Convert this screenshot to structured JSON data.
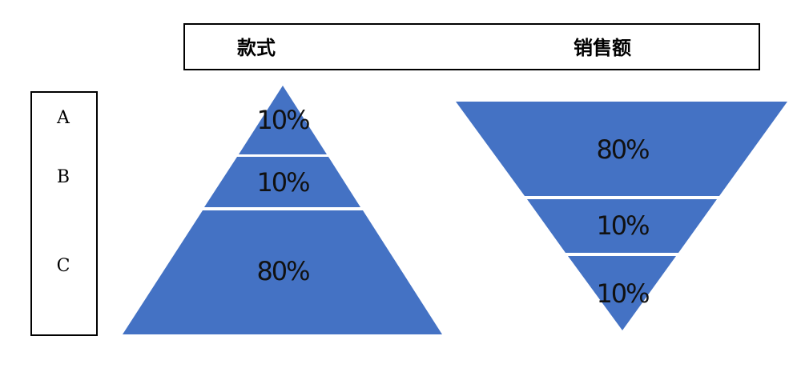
{
  "header": {
    "col1": "款式",
    "col2": "销售额"
  },
  "levels": {
    "a": "A",
    "b": "B",
    "c": "C"
  },
  "pyramid": {
    "segments": [
      "10%",
      "10%",
      "80%"
    ]
  },
  "inverted_pyramid": {
    "segments": [
      "80%",
      "10%",
      "10%"
    ]
  },
  "colors": {
    "fill": "#4472C4",
    "divider": "#ffffff"
  }
}
